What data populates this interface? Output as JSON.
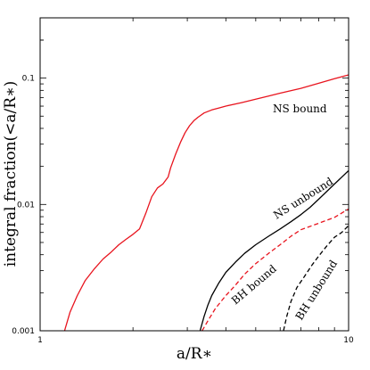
{
  "chart_data": {
    "type": "line",
    "title": "",
    "xlabel": "a/R∗",
    "ylabel": "integral fraction(<a/R∗)",
    "xscale": "log",
    "yscale": "log",
    "xlim": [
      1,
      10
    ],
    "ylim": [
      0.001,
      0.3
    ],
    "grid": false,
    "legend": "none",
    "x_ticks": [
      "1",
      "10"
    ],
    "y_ticks": [
      "0.001",
      "0.01",
      "0.1"
    ],
    "annotations": [
      "NS bound",
      "NS unbound",
      "BH bound",
      "BH unbound"
    ],
    "series": [
      {
        "label": "NS bound",
        "color": "#e8141e",
        "dash": "solid",
        "x": [
          1.2,
          1.25,
          1.32,
          1.4,
          1.5,
          1.6,
          1.7,
          1.8,
          1.9,
          2.0,
          2.1,
          2.2,
          2.3,
          2.4,
          2.5,
          2.6,
          2.65,
          2.75,
          2.85,
          2.95,
          3.05,
          3.15,
          3.25,
          3.4,
          3.6,
          3.8,
          4.0,
          4.5,
          5.0,
          5.5,
          6.0,
          7.0,
          8.0,
          9.0,
          10.0
        ],
        "y": [
          0.001,
          0.0014,
          0.0019,
          0.0025,
          0.0031,
          0.0037,
          0.0042,
          0.0048,
          0.0053,
          0.0058,
          0.0064,
          0.0085,
          0.0115,
          0.0135,
          0.0145,
          0.0165,
          0.0195,
          0.025,
          0.031,
          0.037,
          0.042,
          0.046,
          0.049,
          0.053,
          0.056,
          0.058,
          0.06,
          0.064,
          0.068,
          0.072,
          0.076,
          0.083,
          0.091,
          0.099,
          0.106
        ]
      },
      {
        "label": "NS unbound",
        "color": "#000000",
        "dash": "solid",
        "x": [
          3.3,
          3.4,
          3.5,
          3.6,
          3.8,
          4.0,
          4.3,
          4.6,
          5.0,
          5.5,
          6.0,
          6.5,
          7.0,
          7.5,
          8.0,
          9.0,
          10.0
        ],
        "y": [
          0.001,
          0.0013,
          0.0016,
          0.0019,
          0.0024,
          0.0029,
          0.0035,
          0.0041,
          0.0048,
          0.0056,
          0.0064,
          0.0073,
          0.0083,
          0.0095,
          0.011,
          0.0145,
          0.0185
        ]
      },
      {
        "label": "BH bound",
        "color": "#e8141e",
        "dash": "dashed",
        "x": [
          3.35,
          3.5,
          3.7,
          4.0,
          4.3,
          4.6,
          5.0,
          5.5,
          6.0,
          6.5,
          7.0,
          8.0,
          9.0,
          10.0
        ],
        "y": [
          0.001,
          0.0012,
          0.0015,
          0.0019,
          0.0023,
          0.0028,
          0.0034,
          0.0041,
          0.0048,
          0.0056,
          0.0063,
          0.0071,
          0.0079,
          0.0092
        ]
      },
      {
        "label": "BH unbound",
        "color": "#000000",
        "dash": "dashed",
        "x": [
          6.15,
          6.3,
          6.5,
          6.8,
          7.2,
          7.6,
          8.0,
          8.5,
          9.0,
          9.5,
          10.0
        ],
        "y": [
          0.001,
          0.0013,
          0.0017,
          0.0022,
          0.0027,
          0.0033,
          0.0039,
          0.0047,
          0.0055,
          0.006,
          0.0068
        ]
      }
    ]
  }
}
